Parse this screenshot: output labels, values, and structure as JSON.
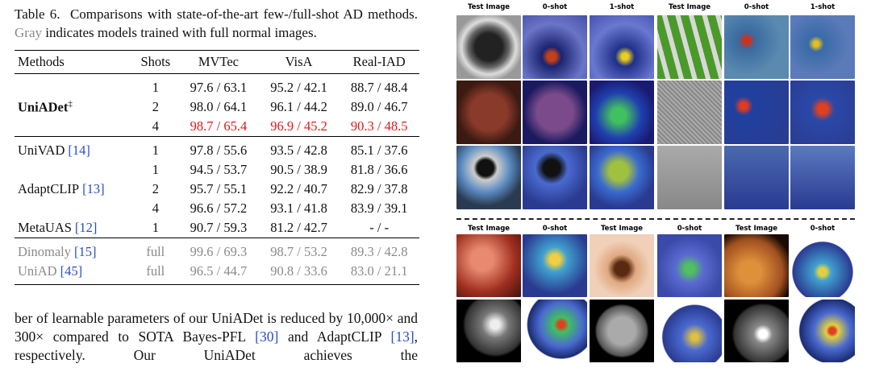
{
  "caption": {
    "label": "Table 6.",
    "text": "Comparisons with state-of-the-art few-/full-shot AD methods.",
    "gray": "Gray",
    "rest": "indicates models trained with full normal images."
  },
  "table": {
    "header": [
      "Methods",
      "Shots",
      "MVTec",
      "VisA",
      "Real-IAD"
    ],
    "groups": [
      {
        "rows": [
          {
            "method": null,
            "shots": "1",
            "cells": [
              "97.6 / 63.1",
              "95.2 / 42.1",
              "88.7 / 48.4"
            ]
          },
          {
            "method": {
              "name": "UniADet",
              "sup": "‡"
            },
            "bold": true,
            "shots": "2",
            "cells": [
              "98.0 / 64.1",
              "96.1 / 44.2",
              "89.0 / 46.7"
            ]
          },
          {
            "method": null,
            "shots": "4",
            "highlight": true,
            "cells": [
              "98.7 / 65.4",
              "96.9 / 45.2",
              "90.3 / 48.5"
            ]
          }
        ]
      },
      {
        "rows": [
          {
            "method": {
              "name": "UniVAD",
              "cite": "[14]"
            },
            "shots": "1",
            "cells": [
              "97.8 / 55.6",
              "93.5 / 42.8",
              "85.1 / 37.6"
            ]
          },
          {
            "method": null,
            "shots": "1",
            "cells": [
              "94.5 / 53.7",
              "90.5 / 38.9",
              "81.8 / 36.6"
            ]
          },
          {
            "method": {
              "name": "AdaptCLIP",
              "cite": "[13]"
            },
            "shots": "2",
            "cells": [
              "95.7 / 55.1",
              "92.2 / 40.7",
              "82.9 / 37.8"
            ]
          },
          {
            "method": null,
            "shots": "4",
            "cells": [
              "96.6 / 57.2",
              "93.1 / 41.8",
              "83.9 / 39.1"
            ]
          },
          {
            "method": {
              "name": "MetaUAS",
              "cite": "[12]"
            },
            "shots": "1",
            "cells": [
              "90.7 / 59.3",
              "81.2 / 42.7",
              "- / -"
            ]
          }
        ]
      },
      {
        "rows": [
          {
            "method": {
              "name": "Dinomaly",
              "cite": "[15]"
            },
            "muted": true,
            "shots": "full",
            "cells": [
              "99.6 / 69.3",
              "98.7 / 53.2",
              "89.3 / 42.8"
            ]
          },
          {
            "method": {
              "name": "UniAD",
              "cite": "[45]"
            },
            "muted": true,
            "shots": "full",
            "cells": [
              "96.5 / 44.7",
              "90.8 / 33.6",
              "83.0 / 21.1"
            ]
          }
        ]
      }
    ]
  },
  "paragraph": [
    {
      "text": "ber of learnable parameters of our UniADet is reduced by 10,000× and 300× compared to SOTA Bayes-PFL"
    },
    {
      "text": "[30]",
      "cite": true
    },
    {
      "text": "and AdaptCLIP"
    },
    {
      "text": "[13]",
      "cite": true
    },
    {
      "text": ", respectively. Our UniADet achieves the"
    }
  ],
  "figure": {
    "top_labels": [
      "Test Image",
      "0-shot",
      "1-shot",
      "Test Image",
      "0-shot",
      "1-shot"
    ],
    "bottom_labels": [
      "Test Image",
      "0-shot",
      "Test Image",
      "0-shot",
      "Test Image",
      "0-shot"
    ]
  }
}
